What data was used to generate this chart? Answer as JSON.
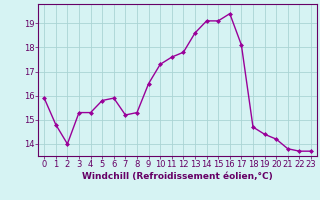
{
  "hours": [
    0,
    1,
    2,
    3,
    4,
    5,
    6,
    7,
    8,
    9,
    10,
    11,
    12,
    13,
    14,
    15,
    16,
    17,
    18,
    19,
    20,
    21,
    22,
    23
  ],
  "windchill": [
    15.9,
    14.8,
    14.0,
    15.3,
    15.3,
    15.8,
    15.9,
    15.2,
    15.3,
    16.5,
    17.3,
    17.6,
    17.8,
    18.6,
    19.1,
    19.1,
    19.4,
    18.1,
    14.7,
    14.4,
    14.2,
    13.8,
    13.7,
    13.7
  ],
  "line_color": "#990099",
  "marker": "D",
  "markersize": 2,
  "linewidth": 1.0,
  "xlabel": "Windchill (Refroidissement éolien,°C)",
  "xlabel_fontsize": 6.5,
  "ylabel_ticks": [
    14,
    15,
    16,
    17,
    18,
    19
  ],
  "ylim": [
    13.5,
    19.8
  ],
  "xlim": [
    -0.5,
    23.5
  ],
  "background_color": "#d6f3f3",
  "grid_color": "#aad4d4",
  "tick_fontsize": 6,
  "title": ""
}
